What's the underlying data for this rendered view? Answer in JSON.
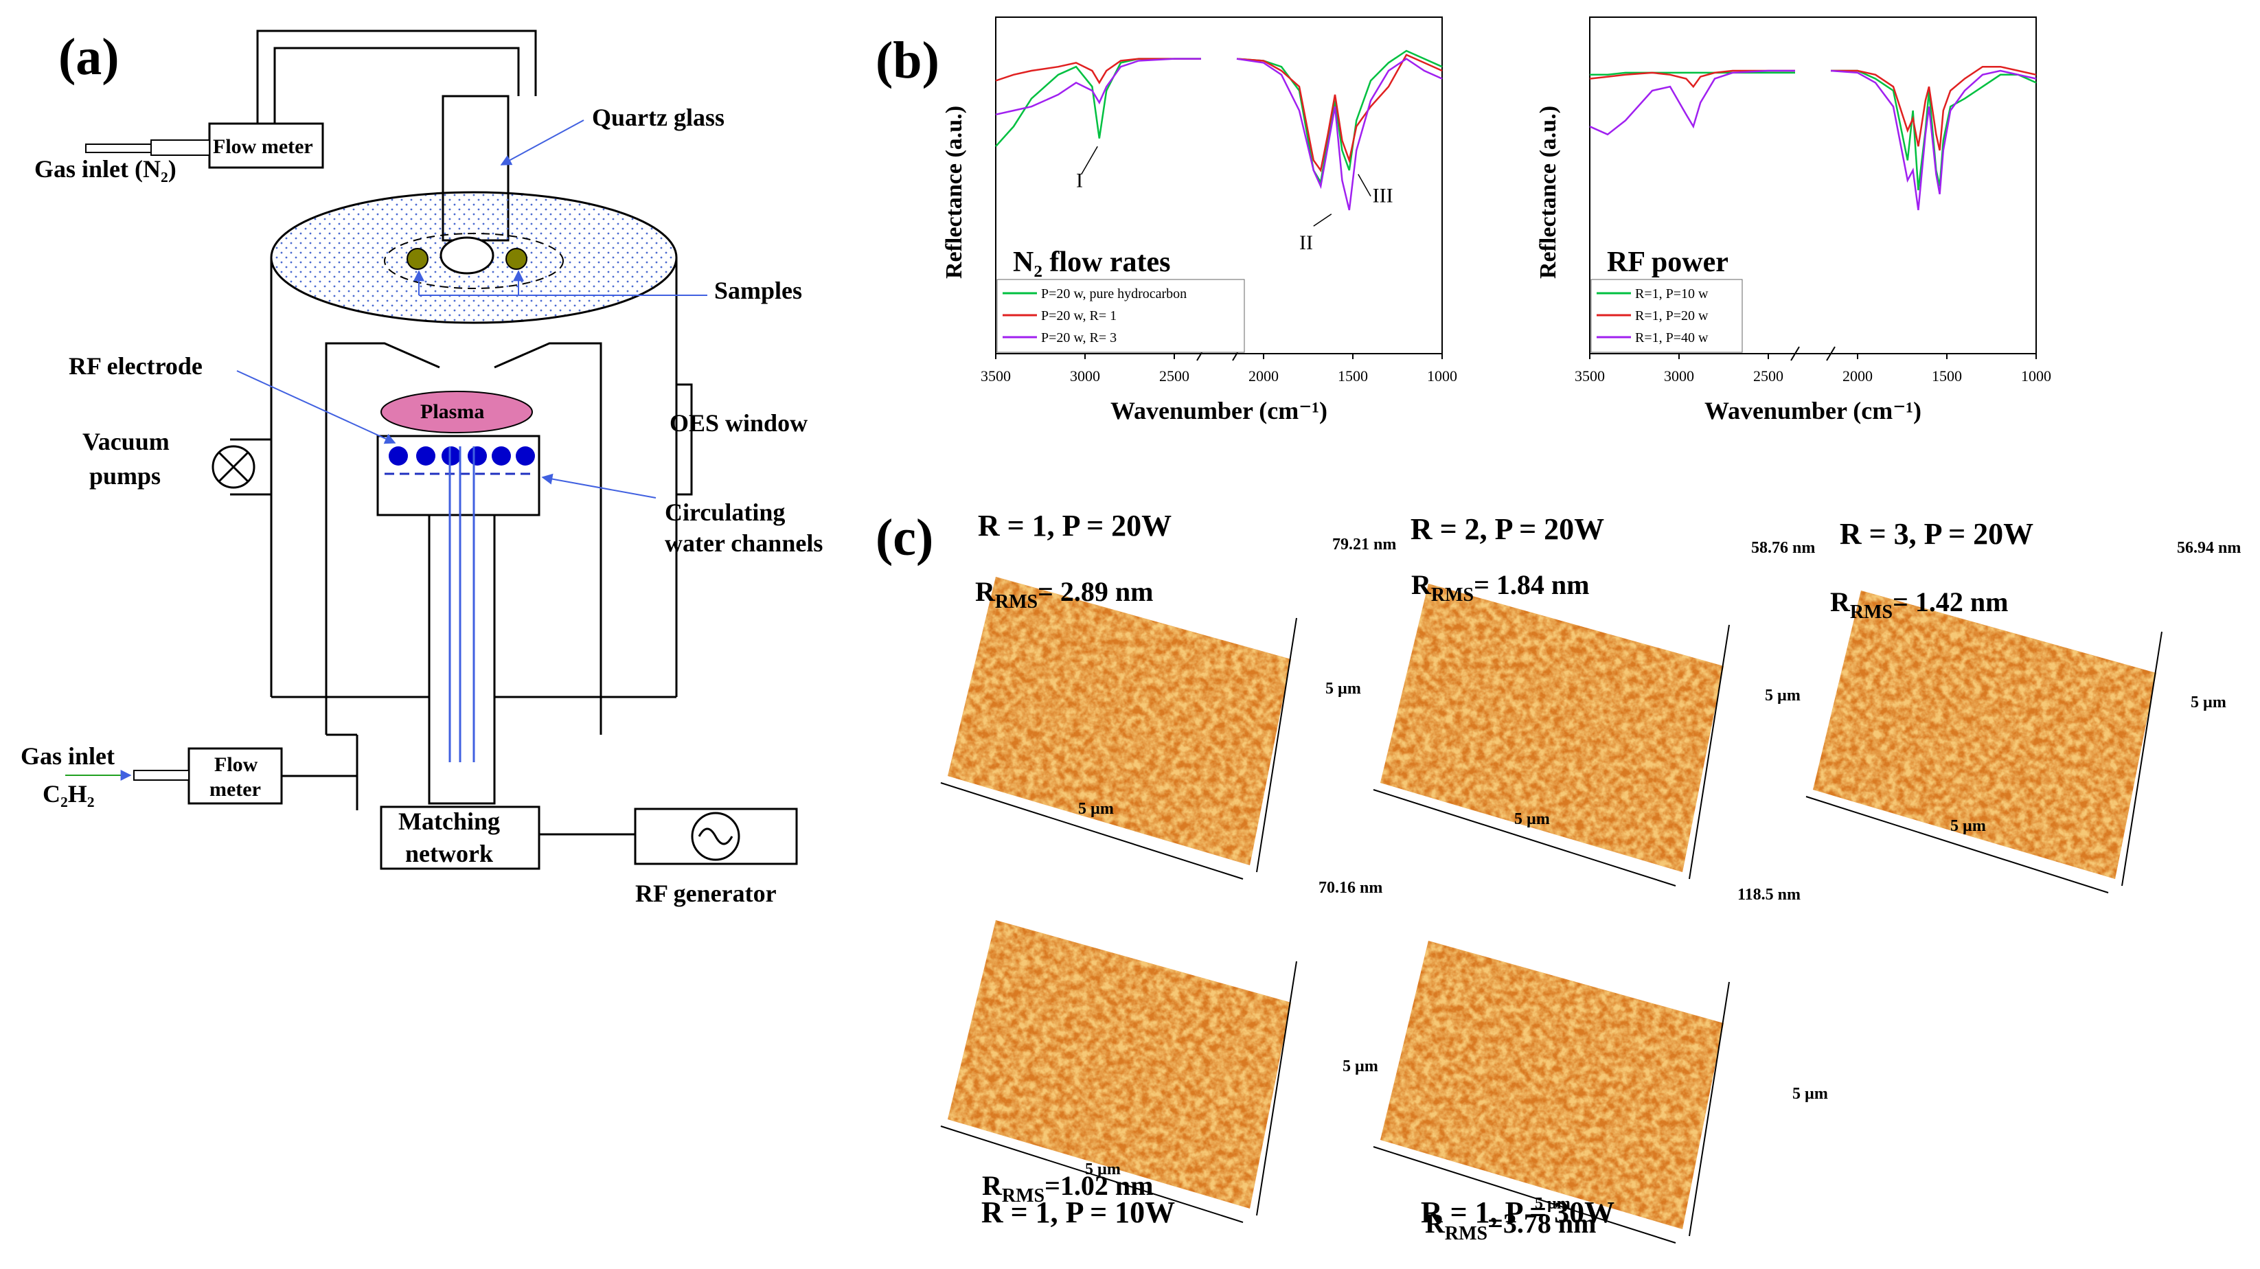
{
  "panel_a": {
    "label": "(a)",
    "gas_inlet_n2": "Gas inlet (N₂)",
    "flow_meter_1": "Flow meter",
    "quartz_glass": "Quartz glass",
    "samples": "Samples",
    "rf_electrode": "RF electrode",
    "plasma": "Plasma",
    "oes_window": "OES window",
    "vacuum_pumps_1": "Vacuum",
    "vacuum_pumps_2": "pumps",
    "circulating_1": "Circulating",
    "circulating_2": "water channels",
    "gas_inlet_c2h2_1": "Gas inlet",
    "gas_inlet_c2h2_2": "C₂H₂",
    "flow_meter_2a": "Flow",
    "flow_meter_2b": "meter",
    "matching_1": "Matching",
    "matching_2": "network",
    "rf_generator": "RF generator"
  },
  "panel_b_label": "(b)",
  "panel_c_label": "(c)",
  "chart_data": [
    {
      "type": "line",
      "title": "N₂ flow rates",
      "xlabel": "Wavenumber (cm⁻¹)",
      "ylabel": "Reflectance (a.u.)",
      "xlim": [
        3500,
        1000
      ],
      "x_break": [
        2350,
        2150
      ],
      "xticks": [
        "3500",
        "3000",
        "2500",
        "2000",
        "1500",
        "1000"
      ],
      "ylim": [
        0,
        1
      ],
      "annotations": [
        "I",
        "II",
        "III"
      ],
      "series": [
        {
          "name": "P=20 w, pure hydrocarbon",
          "color": "#00c040",
          "x": [
            3500,
            3400,
            3300,
            3150,
            3050,
            2960,
            2920,
            2880,
            2800,
            2700,
            2500,
            2350,
            2150,
            2000,
            1900,
            1800,
            1720,
            1680,
            1640,
            1600,
            1560,
            1520,
            1480,
            1400,
            1300,
            1200,
            1100,
            1000
          ],
          "y": [
            0.42,
            0.52,
            0.66,
            0.78,
            0.82,
            0.72,
            0.46,
            0.7,
            0.84,
            0.86,
            0.86,
            0.86,
            0.86,
            0.85,
            0.82,
            0.7,
            0.3,
            0.24,
            0.45,
            0.65,
            0.4,
            0.3,
            0.55,
            0.75,
            0.84,
            0.9,
            0.86,
            0.82
          ]
        },
        {
          "name": "P=20 w, R= 1",
          "color": "#e02020",
          "x": [
            3500,
            3400,
            3300,
            3150,
            3050,
            2960,
            2920,
            2880,
            2800,
            2700,
            2500,
            2350,
            2150,
            2000,
            1900,
            1800,
            1720,
            1680,
            1640,
            1600,
            1560,
            1520,
            1480,
            1400,
            1300,
            1200,
            1100,
            1000
          ],
          "y": [
            0.75,
            0.78,
            0.8,
            0.82,
            0.84,
            0.8,
            0.74,
            0.8,
            0.85,
            0.86,
            0.86,
            0.86,
            0.86,
            0.85,
            0.8,
            0.72,
            0.35,
            0.3,
            0.48,
            0.68,
            0.45,
            0.35,
            0.52,
            0.62,
            0.72,
            0.88,
            0.84,
            0.8
          ]
        },
        {
          "name": "P=20 w, R= 3",
          "color": "#a020f0",
          "x": [
            3500,
            3400,
            3300,
            3150,
            3050,
            2960,
            2920,
            2880,
            2800,
            2700,
            2500,
            2350,
            2150,
            2000,
            1900,
            1800,
            1720,
            1680,
            1640,
            1600,
            1560,
            1520,
            1480,
            1400,
            1300,
            1200,
            1100,
            1000
          ],
          "y": [
            0.58,
            0.6,
            0.62,
            0.68,
            0.74,
            0.7,
            0.64,
            0.72,
            0.82,
            0.85,
            0.86,
            0.86,
            0.86,
            0.84,
            0.78,
            0.6,
            0.3,
            0.22,
            0.42,
            0.62,
            0.25,
            0.1,
            0.4,
            0.65,
            0.8,
            0.86,
            0.8,
            0.76
          ]
        }
      ]
    },
    {
      "type": "line",
      "title": "RF power",
      "xlabel": "Wavenumber (cm⁻¹)",
      "ylabel": "Reflectance (a.u.)",
      "xlim": [
        3500,
        1000
      ],
      "x_break": [
        2350,
        2150
      ],
      "xticks": [
        "3500",
        "3000",
        "2500",
        "2000",
        "1500",
        "1000"
      ],
      "ylim": [
        0,
        1
      ],
      "series": [
        {
          "name": "R=1, P=10 w",
          "color": "#00c040",
          "x": [
            3500,
            3400,
            3300,
            3150,
            3050,
            2960,
            2920,
            2880,
            2800,
            2700,
            2500,
            2350,
            2150,
            2000,
            1900,
            1800,
            1720,
            1690,
            1660,
            1620,
            1600,
            1560,
            1540,
            1520,
            1480,
            1400,
            1300,
            1200,
            1100,
            1000
          ],
          "y": [
            0.78,
            0.78,
            0.79,
            0.79,
            0.79,
            0.79,
            0.79,
            0.79,
            0.79,
            0.79,
            0.79,
            0.79,
            0.8,
            0.8,
            0.76,
            0.7,
            0.35,
            0.6,
            0.2,
            0.5,
            0.7,
            0.3,
            0.22,
            0.45,
            0.62,
            0.66,
            0.72,
            0.78,
            0.78,
            0.74
          ]
        },
        {
          "name": "R=1, P=20 w",
          "color": "#e02020",
          "x": [
            3500,
            3400,
            3300,
            3150,
            3050,
            2960,
            2920,
            2880,
            2800,
            2700,
            2500,
            2350,
            2150,
            2000,
            1900,
            1800,
            1720,
            1690,
            1660,
            1620,
            1600,
            1560,
            1540,
            1520,
            1480,
            1400,
            1300,
            1200,
            1100,
            1000
          ],
          "y": [
            0.76,
            0.77,
            0.78,
            0.79,
            0.78,
            0.76,
            0.72,
            0.77,
            0.79,
            0.8,
            0.8,
            0.8,
            0.8,
            0.8,
            0.78,
            0.72,
            0.5,
            0.56,
            0.42,
            0.65,
            0.72,
            0.48,
            0.4,
            0.6,
            0.7,
            0.76,
            0.82,
            0.82,
            0.8,
            0.78
          ]
        },
        {
          "name": "R=1, P=40 w",
          "color": "#a020f0",
          "x": [
            3500,
            3400,
            3300,
            3150,
            3050,
            2960,
            2920,
            2880,
            2800,
            2700,
            2500,
            2350,
            2150,
            2000,
            1900,
            1800,
            1720,
            1690,
            1660,
            1620,
            1600,
            1560,
            1540,
            1520,
            1480,
            1400,
            1300,
            1200,
            1100,
            1000
          ],
          "y": [
            0.52,
            0.48,
            0.55,
            0.7,
            0.72,
            0.58,
            0.52,
            0.64,
            0.76,
            0.79,
            0.8,
            0.8,
            0.8,
            0.79,
            0.74,
            0.62,
            0.25,
            0.3,
            0.1,
            0.48,
            0.62,
            0.28,
            0.18,
            0.4,
            0.6,
            0.7,
            0.78,
            0.8,
            0.78,
            0.76
          ]
        }
      ]
    }
  ],
  "afm_images": [
    {
      "title": "R = 1, P = 20W",
      "rms": "R",
      "rms_sub": "RMS",
      "rms_value": "= 2.89 nm",
      "zmax": "79.21 nm",
      "x_label": "5 µm",
      "y_label": "5 µm"
    },
    {
      "title": "R = 2, P = 20W",
      "rms": "R",
      "rms_sub": "RMS",
      "rms_value": "= 1.84 nm",
      "zmax": "58.76 nm",
      "x_label": "5 µm",
      "y_label": "5 µm"
    },
    {
      "title": "R = 3, P = 20W",
      "rms": "R",
      "rms_sub": "RMS",
      "rms_value": "= 1.42 nm",
      "zmax": "56.94 nm",
      "x_label": "5 µm",
      "y_label": "5 µm"
    },
    {
      "title": "R = 1, P = 10W",
      "rms": "R",
      "rms_sub": "RMS",
      "rms_value": "=1.02 nm",
      "zmax": "70.16 nm",
      "x_label": "5 µm",
      "y_label": "5 µm"
    },
    {
      "title": "R = 1, P = 30W",
      "rms": "R",
      "rms_sub": "RMS",
      "rms_value": "=3.78 nm",
      "zmax": "118.5 nm",
      "x_label": "5 µm",
      "y_label": "5 µm"
    }
  ],
  "colors": {
    "chamber_dots": "#0000cc",
    "plasma": "#e07ab0",
    "sample_dot": "#808000",
    "arrow_blue": "#4060e0",
    "afm_light": "#f0a030",
    "afm_dark": "#b05010"
  }
}
